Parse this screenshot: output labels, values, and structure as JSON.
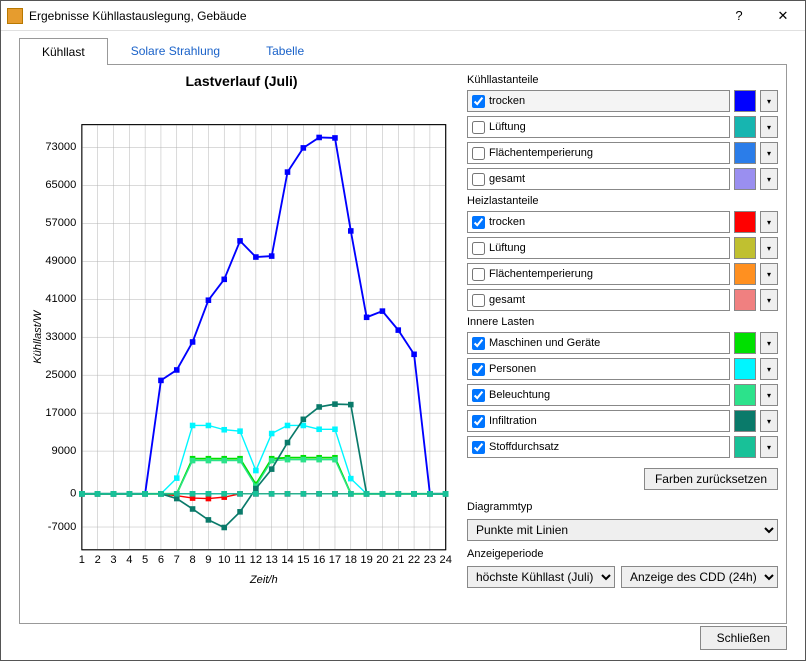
{
  "window": {
    "title": "Ergebnisse Kühllastauslegung, Gebäude",
    "help": "?",
    "close": "✕"
  },
  "tabs": {
    "t1": "Kühllast",
    "t2": "Solare Strahlung",
    "t3": "Tabelle"
  },
  "chart": {
    "title": "Lastverlauf (Juli)",
    "xlabel": "Zeit/h",
    "ylabel": "Kühllast/W",
    "xmin": 1,
    "xmax": 24,
    "ymin": -7000,
    "ymax": 73000,
    "xticks": [
      1,
      2,
      3,
      4,
      5,
      6,
      7,
      8,
      9,
      10,
      11,
      12,
      13,
      14,
      15,
      16,
      17,
      18,
      19,
      20,
      21,
      22,
      23,
      24
    ],
    "yticks": [
      -7000,
      0,
      9000,
      17000,
      25000,
      33000,
      41000,
      49000,
      57000,
      65000,
      73000
    ],
    "bg": "#ffffff",
    "gridColor": "#b0b0b0",
    "border": "#000000",
    "series": [
      {
        "name": "trocken_k",
        "color": "#0000ff",
        "lw": 2,
        "checked": true,
        "marker": true,
        "y": [
          0,
          0,
          0,
          0,
          0,
          23900,
          26100,
          32000,
          40800,
          45200,
          53300,
          49900,
          50100,
          67800,
          72900,
          75100,
          75000,
          55400,
          37200,
          38500,
          34500,
          29400,
          0,
          0
        ]
      },
      {
        "name": "zero_k_l",
        "color": "#17b5b0",
        "lw": 1.5,
        "checked": false,
        "marker": true,
        "y": [
          0,
          0,
          0,
          0,
          0,
          0,
          0,
          0,
          0,
          0,
          0,
          0,
          0,
          0,
          0,
          0,
          0,
          0,
          0,
          0,
          0,
          0,
          0,
          0
        ]
      },
      {
        "name": "zero_k_f",
        "color": "#2b7de9",
        "lw": 1.5,
        "checked": false,
        "marker": true,
        "y": [
          0,
          0,
          0,
          0,
          0,
          0,
          0,
          0,
          0,
          0,
          0,
          0,
          0,
          0,
          0,
          0,
          0,
          0,
          0,
          0,
          0,
          0,
          0,
          0
        ]
      },
      {
        "name": "zero_k_g",
        "color": "#9a8ff0",
        "lw": 1.5,
        "checked": false,
        "marker": true,
        "y": [
          0,
          0,
          0,
          0,
          0,
          0,
          0,
          0,
          0,
          0,
          0,
          0,
          0,
          0,
          0,
          0,
          0,
          0,
          0,
          0,
          0,
          0,
          0,
          0
        ]
      },
      {
        "name": "trocken_h",
        "color": "#ff0000",
        "lw": 1.5,
        "checked": true,
        "marker": true,
        "y": [
          0,
          0,
          0,
          0,
          0,
          0,
          -400,
          -900,
          -1000,
          -700,
          0,
          0,
          0,
          0,
          0,
          0,
          0,
          0,
          0,
          0,
          0,
          0,
          0,
          0
        ]
      },
      {
        "name": "maschinen",
        "color": "#00e000",
        "lw": 2,
        "checked": true,
        "marker": true,
        "y": [
          0,
          0,
          0,
          0,
          0,
          0,
          0,
          7400,
          7400,
          7400,
          7400,
          2000,
          7400,
          7600,
          7600,
          7600,
          7600,
          0,
          0,
          0,
          0,
          0,
          0,
          0
        ]
      },
      {
        "name": "personen",
        "color": "#00f6ff",
        "lw": 1.5,
        "checked": true,
        "marker": true,
        "y": [
          0,
          0,
          0,
          0,
          0,
          0,
          3300,
          14400,
          14400,
          13500,
          13200,
          4900,
          12700,
          14400,
          14400,
          13600,
          13600,
          3200,
          0,
          0,
          0,
          0,
          0,
          0
        ]
      },
      {
        "name": "beleuchtung",
        "color": "#2ce28b",
        "lw": 1.5,
        "checked": true,
        "marker": true,
        "y": [
          0,
          0,
          0,
          0,
          0,
          0,
          0,
          7000,
          7000,
          7000,
          7000,
          1600,
          7000,
          7200,
          7200,
          7200,
          7200,
          0,
          0,
          0,
          0,
          0,
          0,
          0
        ]
      },
      {
        "name": "infiltration",
        "color": "#0a7a6a",
        "lw": 1.8,
        "checked": true,
        "marker": true,
        "y": [
          0,
          0,
          0,
          0,
          0,
          0,
          -1000,
          -3200,
          -5500,
          -7100,
          -3800,
          1100,
          5200,
          10800,
          15700,
          18300,
          18900,
          18800,
          0,
          0,
          0,
          0,
          0,
          0
        ]
      },
      {
        "name": "stoff",
        "color": "#18c198",
        "lw": 1.5,
        "checked": true,
        "marker": true,
        "y": [
          0,
          0,
          0,
          0,
          0,
          0,
          0,
          0,
          0,
          0,
          0,
          0,
          0,
          0,
          0,
          0,
          0,
          0,
          0,
          0,
          0,
          0,
          0,
          0
        ]
      }
    ],
    "label_fontsize": 11,
    "title_fontsize": 14
  },
  "legend": {
    "sections": [
      {
        "title": "Kühllastanteile",
        "items": [
          {
            "label": "trocken",
            "checked": true,
            "color": "#0000ff",
            "selected": true
          },
          {
            "label": "Lüftung",
            "checked": false,
            "color": "#17b5b0"
          },
          {
            "label": "Flächentemperierung",
            "checked": false,
            "color": "#2b7de9"
          },
          {
            "label": "gesamt",
            "checked": false,
            "color": "#9a8ff0"
          }
        ]
      },
      {
        "title": "Heizlastanteile",
        "items": [
          {
            "label": "trocken",
            "checked": true,
            "color": "#ff0000"
          },
          {
            "label": "Lüftung",
            "checked": false,
            "color": "#c0c030"
          },
          {
            "label": "Flächentemperierung",
            "checked": false,
            "color": "#ff9020"
          },
          {
            "label": "gesamt",
            "checked": false,
            "color": "#f08080"
          }
        ]
      },
      {
        "title": "Innere Lasten",
        "items": [
          {
            "label": "Maschinen und Geräte",
            "checked": true,
            "color": "#00e000"
          },
          {
            "label": "Personen",
            "checked": true,
            "color": "#00f6ff"
          },
          {
            "label": "Beleuchtung",
            "checked": true,
            "color": "#2ce28b"
          },
          {
            "label": "Infiltration",
            "checked": true,
            "color": "#0a7a6a"
          },
          {
            "label": "Stoffdurchsatz",
            "checked": true,
            "color": "#18c198"
          }
        ]
      }
    ],
    "resetBtn": "Farben zurücksetzen"
  },
  "diagramType": {
    "label": "Diagrammtyp",
    "value": "Punkte mit Linien"
  },
  "period": {
    "label": "Anzeigeperiode",
    "sel1": "höchste Kühllast (Juli)",
    "sel2": "Anzeige des CDD (24h)"
  },
  "footer": {
    "close": "Schließen"
  }
}
